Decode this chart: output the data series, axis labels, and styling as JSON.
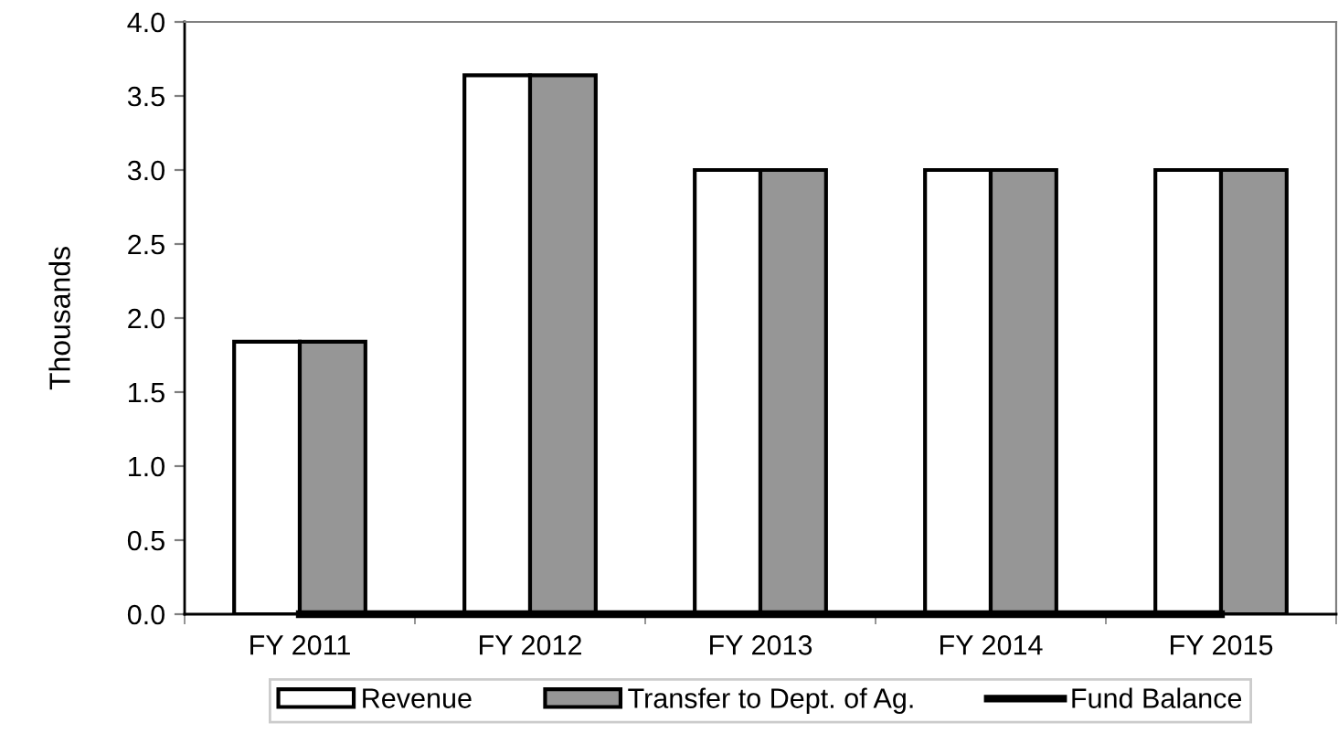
{
  "chart_data": {
    "type": "bar",
    "ylabel": "Thousands",
    "categories": [
      "FY 2011",
      "FY 2012",
      "FY 2013",
      "FY 2014",
      "FY 2015"
    ],
    "series": [
      {
        "name": "Revenue",
        "color": "#ffffff",
        "values": [
          1.84,
          3.64,
          3.0,
          3.0,
          3.0
        ]
      },
      {
        "name": "Transfer to Dept. of Ag.",
        "color": "#969696",
        "values": [
          1.84,
          3.64,
          3.0,
          3.0,
          3.0
        ]
      },
      {
        "name": "Fund Balance",
        "type": "line",
        "color": "#000000",
        "values": [
          0,
          0,
          0,
          0,
          0
        ]
      }
    ],
    "ylim": [
      0,
      4
    ],
    "yticks": [
      {
        "value": 0,
        "label": "0.0"
      },
      {
        "value": 0.5,
        "label": "0.5"
      },
      {
        "value": 1,
        "label": "1.0"
      },
      {
        "value": 1.5,
        "label": "1.5"
      },
      {
        "value": 2,
        "label": "2.0"
      },
      {
        "value": 2.5,
        "label": "2.5"
      },
      {
        "value": 3,
        "label": "3.0"
      },
      {
        "value": 3.5,
        "label": "3.5"
      },
      {
        "value": 4,
        "label": "4.0"
      }
    ],
    "grid": false,
    "legend": "bottom"
  }
}
